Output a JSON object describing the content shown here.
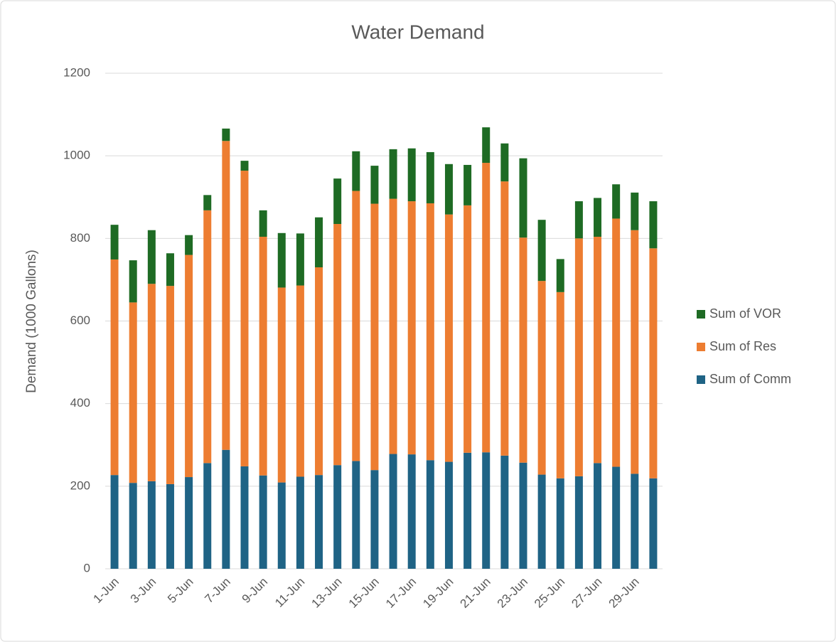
{
  "chart_data": {
    "type": "stacked_bar",
    "title": "Water Demand",
    "y_label": "Demand (1000 Gallons)",
    "categories": [
      "1-Jun",
      null,
      "3-Jun",
      null,
      "5-Jun",
      null,
      "7-Jun",
      null,
      "9-Jun",
      null,
      "11-Jun",
      null,
      "13-Jun",
      null,
      "15-Jun",
      null,
      "17-Jun",
      null,
      "19-Jun",
      null,
      "21-Jun",
      null,
      "23-Jun",
      null,
      "25-Jun",
      null,
      "27-Jun",
      null,
      "29-Jun",
      null
    ],
    "series": [
      {
        "name": "Sum of Comm",
        "color": "#1f6385",
        "values": [
          227,
          208,
          212,
          205,
          222,
          256,
          288,
          248,
          226,
          209,
          223,
          227,
          251,
          261,
          239,
          278,
          277,
          263,
          259,
          281,
          282,
          274,
          257,
          228,
          219,
          224,
          256,
          247,
          230,
          219
        ]
      },
      {
        "name": "Sum of Res",
        "color": "#ed7d31",
        "values": [
          522,
          437,
          478,
          480,
          538,
          612,
          748,
          716,
          578,
          472,
          463,
          503,
          584,
          654,
          645,
          618,
          613,
          622,
          599,
          599,
          701,
          664,
          545,
          469,
          451,
          576,
          548,
          601,
          590,
          557
        ]
      },
      {
        "name": "Sum of VOR",
        "color": "#1e6b24",
        "values": [
          84,
          102,
          130,
          79,
          48,
          37,
          30,
          24,
          64,
          132,
          126,
          121,
          110,
          96,
          92,
          120,
          128,
          124,
          122,
          98,
          86,
          92,
          192,
          148,
          80,
          90,
          94,
          83,
          91,
          114
        ]
      }
    ],
    "ylim": [
      0,
      1200
    ],
    "yticks": [
      0,
      200,
      400,
      600,
      800,
      1000,
      1200
    ],
    "grid": true,
    "legend": "right"
  }
}
